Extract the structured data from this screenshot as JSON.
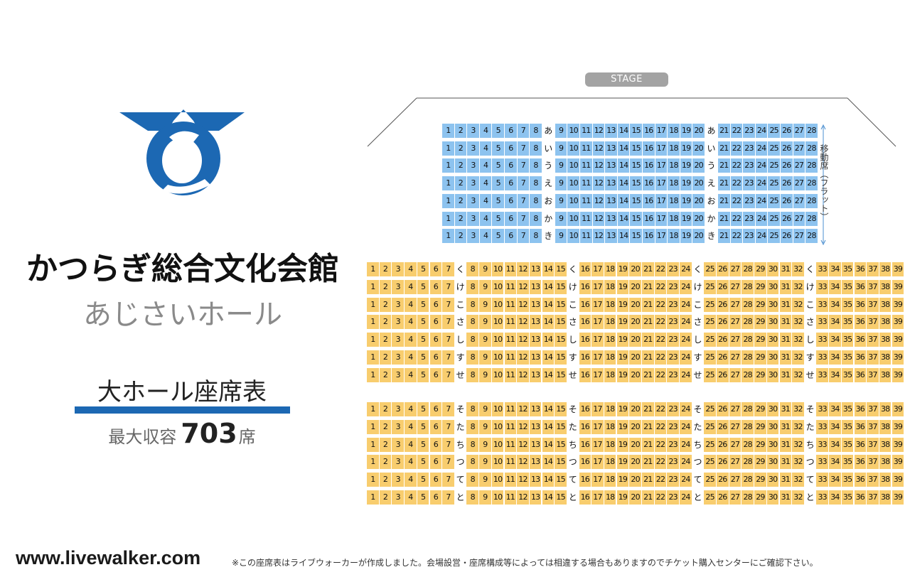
{
  "venue": {
    "name": "かつらぎ総合文化会館",
    "hall": "あじさいホール",
    "map_title": "大ホール座席表",
    "capacity_label": "最大収容",
    "capacity_value": "703",
    "capacity_unit": "席"
  },
  "colors": {
    "brand": "#1c68b3",
    "movable_seat": "#8dc3ef",
    "fixed_seat": "#f8cd6e",
    "stage": "#a3a3a3"
  },
  "stage_label": "STAGE",
  "side_note": "移動席（フラット）",
  "footer": {
    "site": "www.livewalker.com",
    "note": "※この座席表はライブウォーカーが作成しました。会場設営・座席構成等によっては相違する場合もありますのでチケット購入センターにご確認下さい。"
  },
  "seating": {
    "movable_block": {
      "rows": [
        "あ",
        "い",
        "う",
        "え",
        "お",
        "か",
        "き"
      ],
      "segments": [
        [
          1,
          8
        ],
        [
          9,
          20
        ],
        [
          21,
          28
        ]
      ],
      "label_positions": [
        "after-1",
        "after-2"
      ]
    },
    "fixed_block_front": {
      "rows": [
        "く",
        "け",
        "こ",
        "さ",
        "し",
        "す",
        "せ"
      ],
      "segments": [
        [
          1,
          7
        ],
        [
          8,
          15
        ],
        [
          16,
          24
        ],
        [
          25,
          32
        ],
        [
          33,
          39
        ]
      ]
    },
    "fixed_block_rear": {
      "rows": [
        "そ",
        "た",
        "ち",
        "つ",
        "て",
        "と"
      ],
      "segments": [
        [
          1,
          7
        ],
        [
          8,
          15
        ],
        [
          16,
          24
        ],
        [
          25,
          32
        ],
        [
          33,
          39
        ]
      ]
    }
  }
}
